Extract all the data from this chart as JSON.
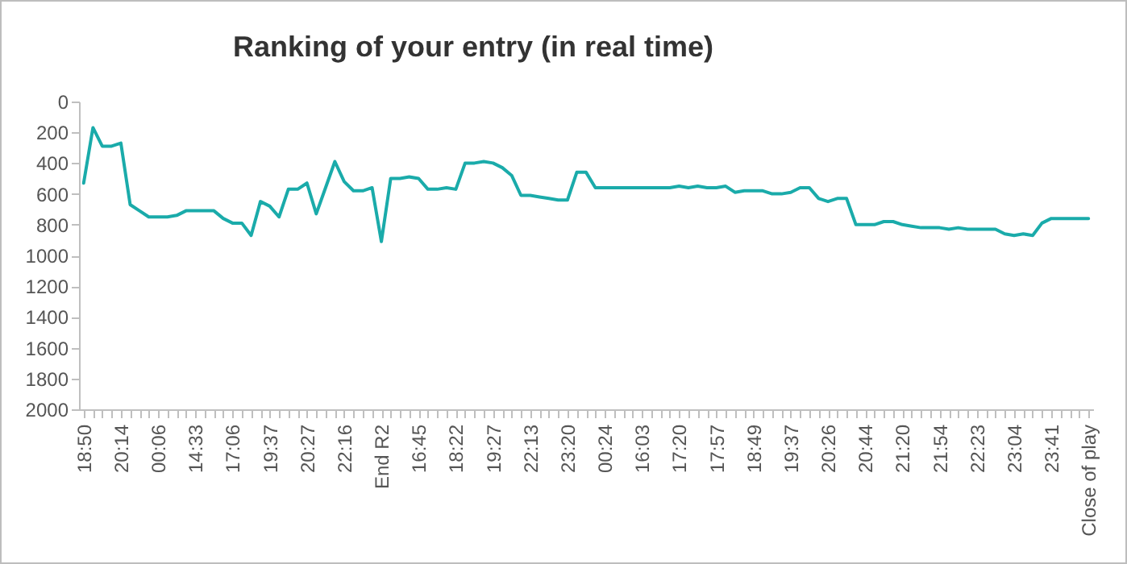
{
  "chart_data": {
    "type": "line",
    "title": "Ranking of your entry (in real time)",
    "categories": [
      "18:50",
      null,
      null,
      null,
      "20:14",
      null,
      null,
      null,
      "00:06",
      null,
      null,
      null,
      "14:33",
      null,
      null,
      null,
      "17:06",
      null,
      null,
      null,
      "19:37",
      null,
      null,
      null,
      "20:27",
      null,
      null,
      null,
      "22:16",
      null,
      null,
      null,
      "End R2",
      null,
      null,
      null,
      "16:45",
      null,
      null,
      null,
      "18:22",
      null,
      null,
      null,
      "19:27",
      null,
      null,
      null,
      "22:13",
      null,
      null,
      null,
      "23:20",
      null,
      null,
      null,
      "00:24",
      null,
      null,
      null,
      "16:03",
      null,
      null,
      null,
      "17:20",
      null,
      null,
      null,
      "17:57",
      null,
      null,
      null,
      "18:49",
      null,
      null,
      null,
      "19:37",
      null,
      null,
      null,
      "20:26",
      null,
      null,
      null,
      "20:44",
      null,
      null,
      null,
      "21:20",
      null,
      null,
      null,
      "21:54",
      null,
      null,
      null,
      "22:23",
      null,
      null,
      null,
      "23:04",
      null,
      null,
      null,
      "23:41",
      null,
      null,
      null,
      "Close of play"
    ],
    "series": [
      {
        "color": "#1aabaa",
        "values": [
          530,
          170,
          290,
          290,
          270,
          670,
          710,
          750,
          750,
          750,
          740,
          710,
          710,
          710,
          710,
          760,
          790,
          790,
          870,
          650,
          680,
          750,
          570,
          570,
          530,
          730,
          560,
          390,
          520,
          580,
          580,
          560,
          910,
          500,
          500,
          490,
          500,
          570,
          570,
          560,
          570,
          400,
          400,
          390,
          400,
          430,
          480,
          610,
          610,
          620,
          630,
          640,
          640,
          460,
          460,
          560,
          560,
          560,
          560,
          560,
          560,
          560,
          560,
          560,
          550,
          560,
          550,
          560,
          560,
          550,
          590,
          580,
          580,
          580,
          600,
          600,
          590,
          560,
          560,
          630,
          650,
          630,
          630,
          800,
          800,
          800,
          780,
          780,
          800,
          810,
          820,
          820,
          820,
          830,
          820,
          830,
          830,
          830,
          830,
          860,
          870,
          860,
          870,
          790,
          760,
          760,
          760,
          760,
          760
        ]
      }
    ],
    "ylim": [
      2000,
      0
    ],
    "yticks": [
      0,
      200,
      400,
      600,
      800,
      1000,
      1200,
      1400,
      1600,
      1800,
      2000
    ],
    "grid": false
  }
}
